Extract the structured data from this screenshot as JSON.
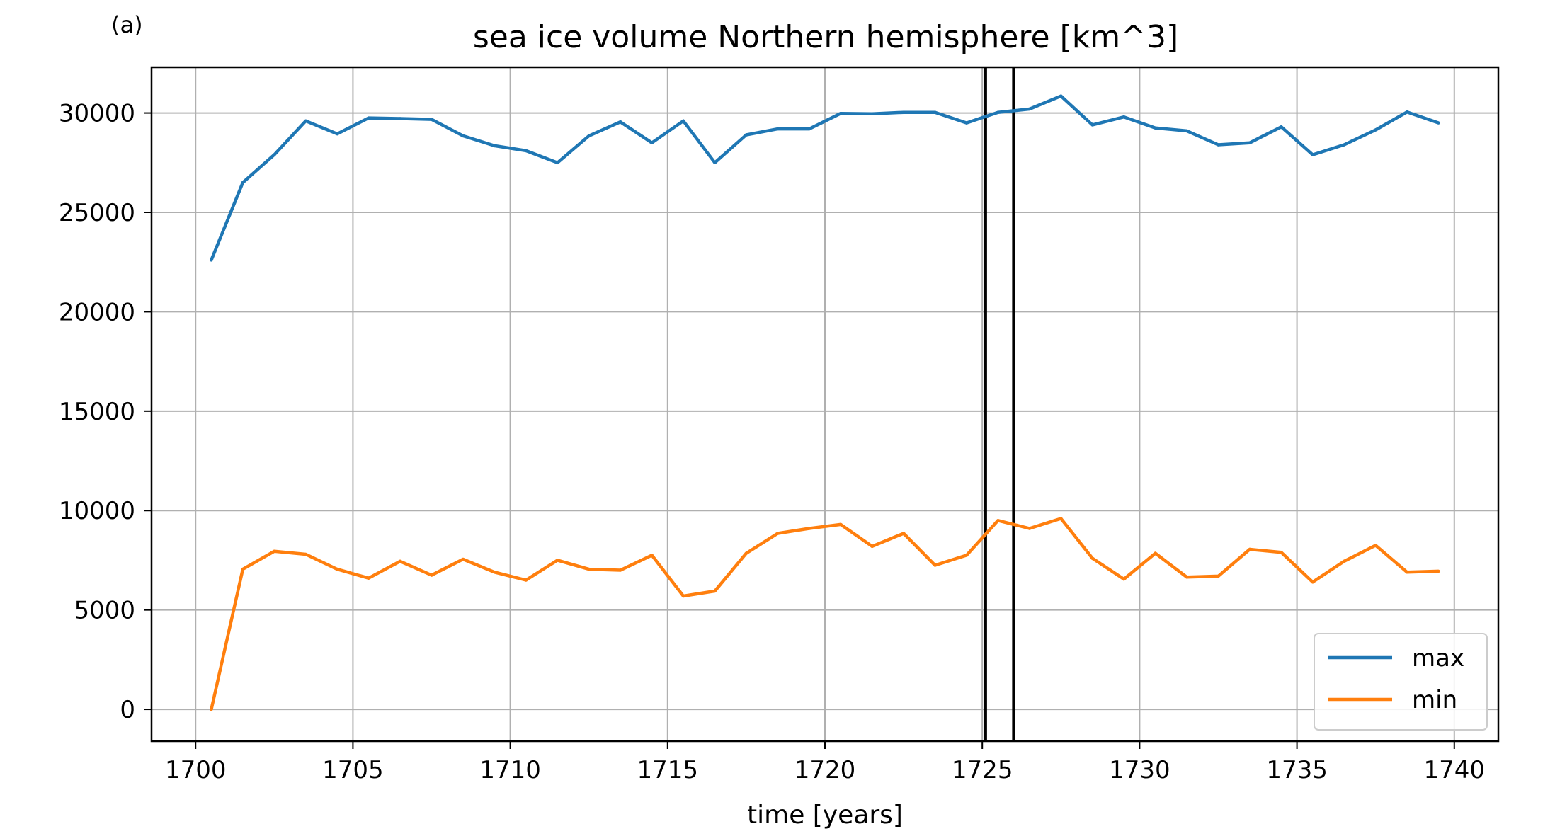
{
  "panel_label": "(a)",
  "chart_data": {
    "type": "line",
    "title": "sea ice volume Northern hemisphere [km^3]",
    "xlabel": "time [years]",
    "ylabel": "",
    "xlim": [
      1698.6,
      1741.4
    ],
    "ylim": [
      -1600,
      32300
    ],
    "xticks": [
      1700,
      1705,
      1710,
      1715,
      1720,
      1725,
      1730,
      1735,
      1740
    ],
    "yticks": [
      0,
      5000,
      10000,
      15000,
      20000,
      25000,
      30000
    ],
    "grid": true,
    "legend_position": "lower-right",
    "vlines": [
      1725.1,
      1726.0
    ],
    "x": [
      1700.5,
      1701.5,
      1702.5,
      1703.5,
      1704.5,
      1705.5,
      1706.5,
      1707.5,
      1708.5,
      1709.5,
      1710.5,
      1711.5,
      1712.5,
      1713.5,
      1714.5,
      1715.5,
      1716.5,
      1717.5,
      1718.5,
      1719.5,
      1720.5,
      1721.5,
      1722.5,
      1723.5,
      1724.5,
      1725.5,
      1726.5,
      1727.5,
      1728.5,
      1729.5,
      1730.5,
      1731.5,
      1732.5,
      1733.5,
      1734.5,
      1735.5,
      1736.5,
      1737.5,
      1738.5,
      1739.5
    ],
    "series": [
      {
        "name": "max",
        "color": "#1f77b4",
        "values": [
          22600,
          26500,
          27900,
          29600,
          28950,
          29750,
          29720,
          29680,
          28850,
          28350,
          28100,
          27500,
          28850,
          29550,
          28500,
          29600,
          27500,
          28900,
          29200,
          29200,
          29980,
          29960,
          30030,
          30030,
          29500,
          30030,
          30200,
          30850,
          29400,
          29800,
          29250,
          29100,
          28400,
          28500,
          29300,
          27900,
          28400,
          29150,
          30050,
          29500
        ]
      },
      {
        "name": "min",
        "color": "#ff7f0e",
        "values": [
          0,
          7050,
          7950,
          7800,
          7050,
          6600,
          7450,
          6750,
          7550,
          6900,
          6500,
          7500,
          7050,
          7000,
          7750,
          5700,
          5950,
          7850,
          8850,
          9100,
          9300,
          8200,
          8850,
          7250,
          7750,
          9500,
          9100,
          9600,
          7600,
          6550,
          7850,
          6650,
          6700,
          8050,
          7900,
          6400,
          7450,
          8250,
          6900,
          6950
        ]
      }
    ]
  }
}
